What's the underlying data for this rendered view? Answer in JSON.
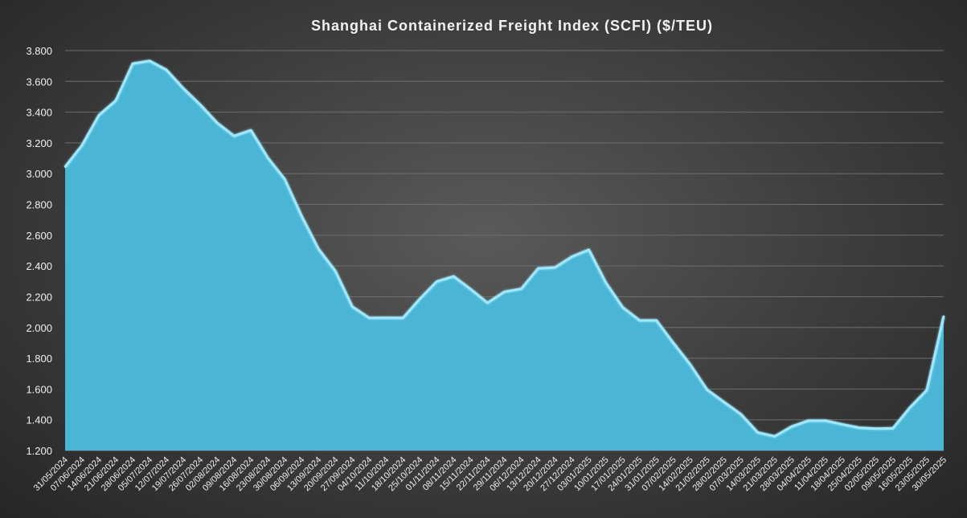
{
  "chart_data": {
    "type": "area",
    "title": "Shanghai Containerized Freight Index (SCFI) ($/TEU)",
    "xlabel": "",
    "ylabel": "",
    "ylim": [
      1200,
      3800
    ],
    "ytick_step": 200,
    "ytick_labels": [
      "1.200",
      "1.400",
      "1.600",
      "1.800",
      "2.000",
      "2.200",
      "2.400",
      "2.600",
      "2.800",
      "3.000",
      "3.200",
      "3.400",
      "3.600",
      "3.800"
    ],
    "grid": true,
    "legend": "none",
    "colors": {
      "fill": "#4bb5d6",
      "line": "#9fe8fb"
    },
    "x": [
      "31/05/2024",
      "07/06/2024",
      "14/06/2024",
      "21/06/2024",
      "28/06/2024",
      "05/07/2024",
      "12/07/2024",
      "19/07/2024",
      "26/07/2024",
      "02/08/2024",
      "09/08/2024",
      "16/08/2024",
      "23/08/2024",
      "30/08/2024",
      "06/09/2024",
      "13/09/2024",
      "20/09/2024",
      "27/09/2024",
      "04/10/2024",
      "11/10/2024",
      "18/10/2024",
      "25/10/2024",
      "01/11/2024",
      "08/11/2024",
      "15/11/2024",
      "22/11/2024",
      "29/11/2024",
      "06/12/2024",
      "13/12/2024",
      "20/12/2024",
      "27/12/2024",
      "03/01/2025",
      "10/01/2025",
      "17/01/2025",
      "24/01/2025",
      "31/01/2025",
      "07/02/2025",
      "14/02/2025",
      "21/02/2025",
      "28/02/2025",
      "07/03/2025",
      "14/03/2025",
      "21/03/2025",
      "28/03/2025",
      "04/04/2025",
      "11/04/2025",
      "18/04/2025",
      "25/04/2025",
      "02/05/2025",
      "09/05/2025",
      "16/05/2025",
      "23/05/2025",
      "30/05/2025"
    ],
    "values": [
      3044,
      3184,
      3380,
      3475,
      3715,
      3733,
      3674,
      3554,
      3448,
      3330,
      3245,
      3282,
      3103,
      2964,
      2724,
      2510,
      2366,
      2135,
      2062,
      2063,
      2062,
      2186,
      2299,
      2332,
      2249,
      2160,
      2232,
      2251,
      2384,
      2390,
      2460,
      2505,
      2292,
      2131,
      2046,
      2046,
      1899,
      1759,
      1595,
      1515,
      1436,
      1317,
      1292,
      1356,
      1394,
      1394,
      1370,
      1348,
      1342,
      1345,
      1479,
      1593,
      2073
    ]
  }
}
